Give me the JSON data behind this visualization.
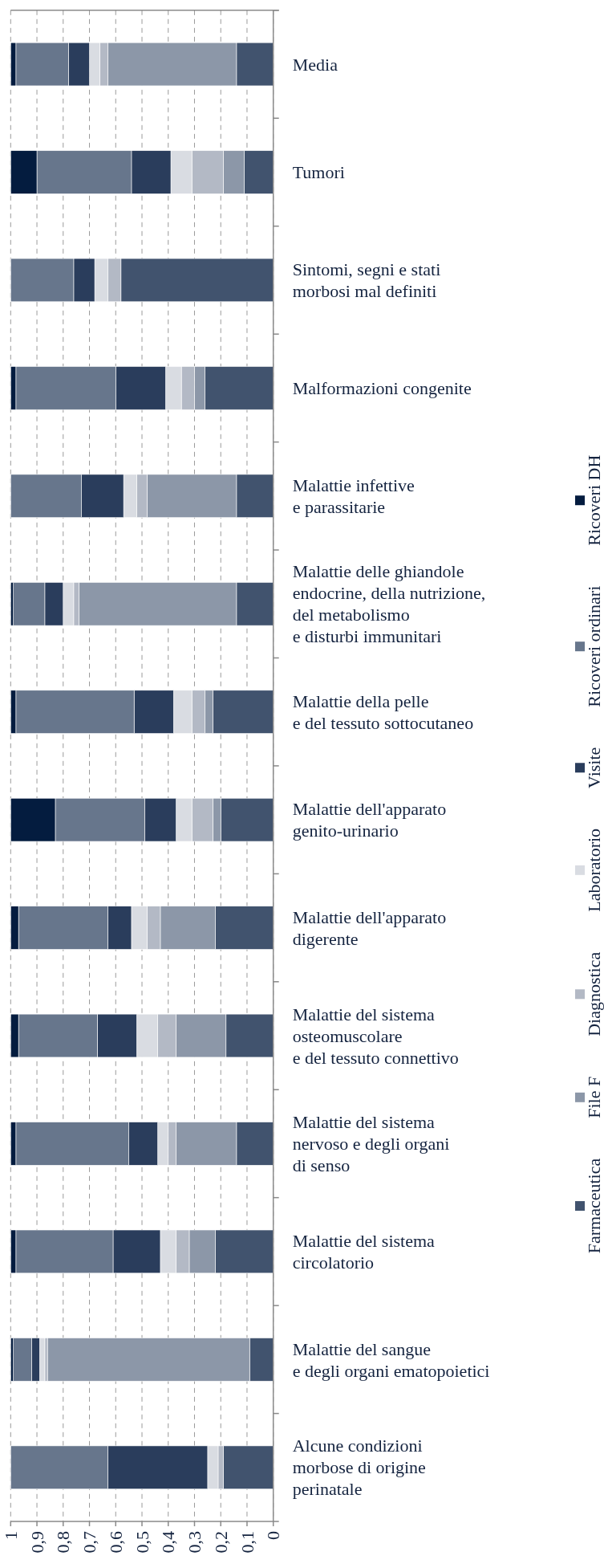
{
  "chart_data": {
    "type": "bar",
    "orientation": "horizontal",
    "stacked": true,
    "categories": [
      "Media",
      "Tumori",
      "Sintomi, segni e stati\nmorbosi mal definiti",
      "Malformazioni congenite",
      "Malattie infettive\ne parassitarie",
      "Malattie delle ghiandole\nendocrine, della nutrizione,\ndel metabolismo\ne disturbi immunitari",
      "Malattie della pelle\ne del tessuto sottocutaneo",
      "Malattie dell'apparato\ngenito-urinario",
      "Malattie dell'apparato\ndigerente",
      "Malattie del sistema\nosteomuscolare\ne del tessuto connettivo",
      "Malattie del sistema\nnervoso e degli organi\ndi senso",
      "Malattie del sistema\ncircolatorio",
      "Malattie del sangue\ne degli organi ematopoietici",
      "Alcune condizioni\nmorbose di origine\nperinatale"
    ],
    "xlim": [
      1,
      0
    ],
    "xticks": [
      1,
      {
        "value": 0.9,
        "label": "0,9"
      },
      {
        "value": 0.8,
        "label": "0,8"
      },
      {
        "value": 0.7,
        "label": "0,7"
      },
      {
        "value": 0.6,
        "label": "0,6"
      },
      {
        "value": 0.5,
        "label": "0,5"
      },
      {
        "value": 0.4,
        "label": "0,4"
      },
      {
        "value": 0.3,
        "label": "0,3"
      },
      {
        "value": 0.2,
        "label": "0,2"
      },
      {
        "value": 0.1,
        "label": "0,1"
      },
      0
    ],
    "grid": "x",
    "legend": "right",
    "series": [
      {
        "name": "Farmaceutica",
        "color": "#41536e",
        "values": [
          0.14,
          0.11,
          0.58,
          0.26,
          0.14,
          0.14,
          0.23,
          0.2,
          0.22,
          0.18,
          0.14,
          0.22,
          0.09,
          0.19
        ]
      },
      {
        "name": "File F",
        "color": "#8c97a8",
        "values": [
          0.49,
          0.08,
          0,
          0.04,
          0.34,
          0.6,
          0.03,
          0.03,
          0.21,
          0.19,
          0.23,
          0.1,
          0.77,
          0
        ]
      },
      {
        "name": "Diagnostica",
        "color": "#b3b9c5",
        "values": [
          0.03,
          0.12,
          0.05,
          0.05,
          0.04,
          0.02,
          0.05,
          0.08,
          0.05,
          0.07,
          0.03,
          0.05,
          0.01,
          0.02
        ]
      },
      {
        "name": "Laboratorio",
        "color": "#d9dce2",
        "values": [
          0.04,
          0.08,
          0.05,
          0.06,
          0.05,
          0.04,
          0.07,
          0.06,
          0.06,
          0.08,
          0.04,
          0.06,
          0.02,
          0.04
        ]
      },
      {
        "name": "Visite",
        "color": "#2a3d5c",
        "values": [
          0.08,
          0.15,
          0.08,
          0.19,
          0.16,
          0.07,
          0.15,
          0.12,
          0.09,
          0.15,
          0.11,
          0.18,
          0.03,
          0.38
        ]
      },
      {
        "name": "Ricoveri ordinari",
        "color": "#67768c",
        "values": [
          0.2,
          0.36,
          0.24,
          0.38,
          0.27,
          0.12,
          0.45,
          0.34,
          0.34,
          0.3,
          0.43,
          0.37,
          0.07,
          0.37
        ]
      },
      {
        "name": "Ricoveri DH",
        "color": "#041c3f",
        "values": [
          0.02,
          0.1,
          0,
          0.02,
          0,
          0.01,
          0.02,
          0.17,
          0.03,
          0.03,
          0.02,
          0.02,
          0.01,
          0
        ]
      }
    ]
  }
}
